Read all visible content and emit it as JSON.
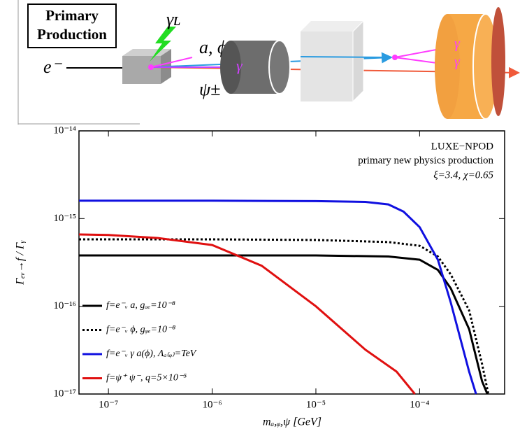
{
  "diagram": {
    "labels": [
      "Primary",
      "Production",
      "e⁻",
      "γʟ",
      "a, ϕ",
      "ψ±",
      "γ",
      "γ",
      "γ"
    ]
  },
  "chart_data": {
    "type": "line",
    "annotation": [
      "LUXE−NPOD",
      "primary new physics production",
      "ξ=3.4, χ=0.65"
    ],
    "xlabel": "mₐ,ᵩ,ψ [GeV]",
    "ylabel": "Γₑᵥ→f / Γᵧ",
    "xscale": "log",
    "yscale": "log",
    "xlim": [
      5.2e-08,
      0.00066
    ],
    "ylim": [
      1e-17,
      1e-14
    ],
    "xticks": [
      {
        "value": 1e-07,
        "label": "10⁻⁷"
      },
      {
        "value": 1e-06,
        "label": "10⁻⁶"
      },
      {
        "value": 1e-05,
        "label": "10⁻⁵"
      },
      {
        "value": 0.0001,
        "label": "10⁻⁴"
      }
    ],
    "yticks": [
      {
        "value": 1e-17,
        "label": "10⁻¹⁷"
      },
      {
        "value": 1e-16,
        "label": "10⁻¹⁶"
      },
      {
        "value": 1e-15,
        "label": "10⁻¹⁵"
      },
      {
        "value": 1e-14,
        "label": "10⁻¹⁴"
      }
    ],
    "legend": "lower left",
    "series": [
      {
        "name": "f=e⁻ᵥ a, gₐₑ=10⁻⁸",
        "color": "#000000",
        "style": "solid",
        "x": [
          5.2e-08,
          1e-06,
          1e-05,
          5e-05,
          0.0001,
          0.00015,
          0.0002,
          0.0003,
          0.0004,
          0.00045
        ],
        "values": [
          3.8e-16,
          3.8e-16,
          3.8e-16,
          3.7e-16,
          3.4e-16,
          2.6e-16,
          1.6e-16,
          5.5e-17,
          1.4e-17,
          1e-17
        ]
      },
      {
        "name": "f=e⁻ᵥ ϕ, gᵩₑ=10⁻⁸",
        "color": "#000000",
        "style": "dotted",
        "x": [
          5.2e-08,
          1e-06,
          1e-05,
          5e-05,
          0.0001,
          0.00015,
          0.0002,
          0.0003,
          0.0004,
          0.00046
        ],
        "values": [
          5.8e-16,
          5.8e-16,
          5.7e-16,
          5.4e-16,
          4.9e-16,
          3.7e-16,
          2.3e-16,
          9e-17,
          2.2e-17,
          1e-17
        ]
      },
      {
        "name": "f=e⁻ᵥ γ a(ϕ), Λₐ₍ᵩ₎=TeV",
        "color": "#1010e0",
        "style": "solid",
        "x": [
          5.2e-08,
          1e-06,
          1e-05,
          3e-05,
          5e-05,
          7e-05,
          0.0001,
          0.00015,
          0.0002,
          0.0003,
          0.00035
        ],
        "values": [
          1.6e-15,
          1.6e-15,
          1.58e-15,
          1.55e-15,
          1.45e-15,
          1.2e-15,
          8e-16,
          3.4e-16,
          1.1e-16,
          1.8e-17,
          1e-17
        ]
      },
      {
        "name": "f=ψ⁺ ψ⁻, q=5×10⁻⁵",
        "color": "#e01010",
        "style": "solid",
        "x": [
          5.2e-08,
          1e-07,
          3e-07,
          1e-06,
          3e-06,
          1e-05,
          3e-05,
          6e-05,
          9e-05
        ],
        "values": [
          6.6e-16,
          6.5e-16,
          6e-16,
          5e-16,
          2.9e-16,
          1e-16,
          3.2e-17,
          1.8e-17,
          1e-17
        ]
      }
    ]
  }
}
